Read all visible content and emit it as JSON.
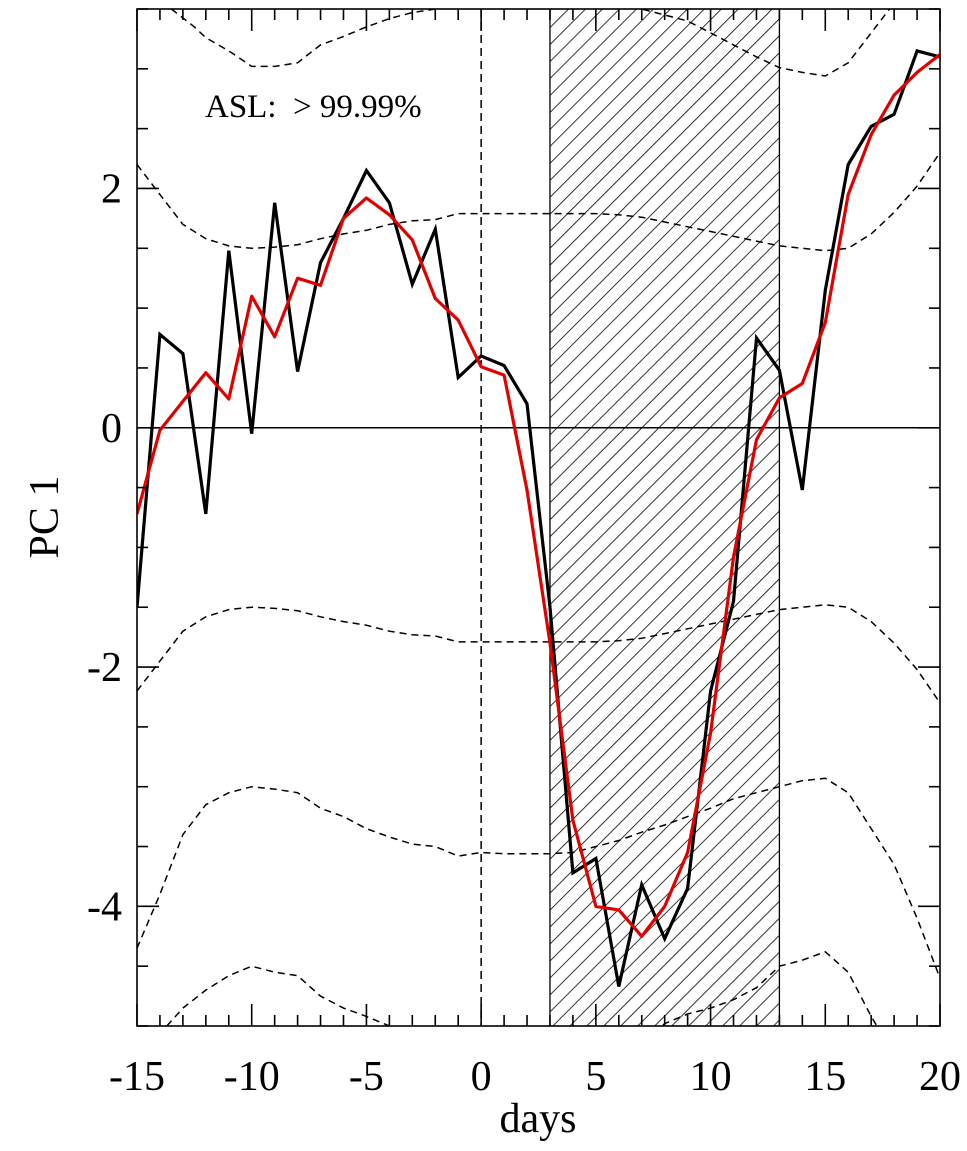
{
  "chart_data": {
    "type": "line",
    "xlabel": "days",
    "ylabel": "PC 1",
    "xlim": [
      -15,
      20
    ],
    "ylim": [
      -5,
      3.5
    ],
    "x_ticks": [
      -15,
      -10,
      -5,
      0,
      5,
      10,
      15,
      20
    ],
    "y_ticks": [
      -4,
      -2,
      0,
      2
    ],
    "x_minor_step": 1,
    "y_minor_step": 0.5,
    "annotation": "ASL:  > 99.99%",
    "shaded_region": [
      3,
      13
    ],
    "zero_line": 0,
    "vertical_marker": 0,
    "colors": {
      "raw": "#000000",
      "smoothed": "#e00000",
      "bands": "#000000"
    },
    "series": [
      {
        "x": [
          -15,
          -14,
          -13,
          -12,
          -11,
          -10,
          -9,
          -8,
          -7,
          -6,
          -5,
          -4,
          -3,
          -2,
          -1,
          0,
          1,
          2,
          3,
          4,
          5,
          6,
          7,
          8,
          9,
          10,
          11,
          12,
          13,
          14,
          15,
          16,
          17,
          18,
          19,
          20
        ],
        "y": [
          -1.5,
          0.78,
          0.62,
          -0.72,
          1.48,
          -0.05,
          1.88,
          0.47,
          1.38,
          1.75,
          2.15,
          1.88,
          1.2,
          1.66,
          0.42,
          0.6,
          0.52,
          0.2,
          -1.5,
          -3.72,
          -3.6,
          -4.67,
          -3.82,
          -4.27,
          -3.85,
          -2.2,
          -1.45,
          0.75,
          0.48,
          -0.52,
          1.15,
          2.2,
          2.52,
          2.62,
          3.15,
          3.1
        ]
      },
      {
        "x": [
          -15,
          -14,
          -13,
          -12,
          -11,
          -10,
          -9,
          -8,
          -7,
          -6,
          -5,
          -4,
          -3,
          -2,
          -1,
          0,
          1,
          2,
          3,
          4,
          5,
          6,
          7,
          8,
          9,
          10,
          11,
          12,
          13,
          14,
          15,
          16,
          17,
          18,
          19,
          20
        ],
        "y": [
          -0.72,
          -0.02,
          0.22,
          0.46,
          0.24,
          1.1,
          0.76,
          1.25,
          1.19,
          1.75,
          1.92,
          1.78,
          1.57,
          1.08,
          0.9,
          0.51,
          0.44,
          -0.52,
          -1.8,
          -3.28,
          -4.0,
          -4.03,
          -4.25,
          -4.0,
          -3.55,
          -2.55,
          -1.08,
          -0.1,
          0.25,
          0.37,
          0.88,
          1.95,
          2.45,
          2.78,
          2.97,
          3.12
        ]
      }
    ],
    "bands": [
      {
        "x": [
          -15,
          -14,
          -13,
          -12,
          -11,
          -10,
          -9,
          -8,
          -7,
          -6,
          -5,
          -4,
          -3,
          -2,
          -1,
          0,
          1,
          2,
          3,
          4,
          5,
          6,
          7,
          8,
          9,
          10,
          11,
          12,
          13,
          14,
          15,
          16,
          17,
          18,
          19,
          20
        ],
        "y": [
          2.2,
          1.95,
          1.7,
          1.58,
          1.52,
          1.5,
          1.51,
          1.53,
          1.58,
          1.62,
          1.65,
          1.7,
          1.73,
          1.74,
          1.79,
          1.79,
          1.79,
          1.79,
          1.79,
          1.79,
          1.79,
          1.78,
          1.76,
          1.72,
          1.68,
          1.64,
          1.6,
          1.56,
          1.52,
          1.5,
          1.48,
          1.5,
          1.62,
          1.8,
          2.02,
          2.3
        ]
      },
      {
        "x": [
          -15,
          -14,
          -13,
          -12,
          -11,
          -10,
          -9,
          -8,
          -7,
          -6,
          -5,
          -4,
          -3,
          -2,
          -1,
          0,
          1,
          2,
          3,
          4,
          5,
          6,
          7,
          8,
          9,
          10,
          11,
          12,
          13,
          14,
          15,
          16,
          17,
          18,
          19,
          20
        ],
        "y": [
          -2.2,
          -1.95,
          -1.7,
          -1.58,
          -1.52,
          -1.5,
          -1.51,
          -1.53,
          -1.58,
          -1.62,
          -1.65,
          -1.7,
          -1.73,
          -1.74,
          -1.79,
          -1.79,
          -1.79,
          -1.79,
          -1.79,
          -1.79,
          -1.79,
          -1.78,
          -1.76,
          -1.72,
          -1.68,
          -1.64,
          -1.6,
          -1.56,
          -1.52,
          -1.5,
          -1.48,
          -1.5,
          -1.62,
          -1.8,
          -2.02,
          -2.3
        ]
      },
      {
        "x": [
          -13.5,
          -12.5,
          -12,
          -11,
          -10,
          -9,
          -8,
          -7,
          -6,
          -5,
          -4,
          -3,
          -2,
          -1,
          0
        ],
        "y": [
          3.5,
          3.35,
          3.26,
          3.15,
          3.02,
          3.02,
          3.05,
          3.2,
          3.27,
          3.35,
          3.42,
          3.47,
          3.5,
          3.52,
          3.55
        ]
      },
      {
        "x": [
          5,
          6,
          7,
          8,
          9,
          10,
          11,
          12,
          13,
          14,
          15,
          16,
          17,
          18,
          19,
          20
        ],
        "y": [
          3.57,
          3.55,
          3.5,
          3.45,
          3.4,
          3.3,
          3.2,
          3.1,
          3.01,
          2.97,
          2.94,
          3.05,
          3.3,
          3.55,
          3.8,
          4.1
        ]
      },
      {
        "x": [
          -15,
          -14,
          -13,
          -12,
          -11,
          -10,
          -9,
          -8,
          -7,
          -6,
          -5,
          -4,
          -3,
          -2,
          -1,
          0,
          1,
          2,
          3,
          4,
          5,
          6,
          7,
          8,
          9,
          10,
          11,
          12,
          13,
          14,
          15,
          16,
          17,
          18,
          19,
          20
        ],
        "y": [
          -4.35,
          -3.9,
          -3.4,
          -3.15,
          -3.05,
          -3.0,
          -3.02,
          -3.05,
          -3.18,
          -3.25,
          -3.35,
          -3.42,
          -3.48,
          -3.5,
          -3.58,
          -3.55,
          -3.56,
          -3.56,
          -3.56,
          -3.55,
          -3.5,
          -3.45,
          -3.38,
          -3.32,
          -3.25,
          -3.18,
          -3.1,
          -3.05,
          -3.0,
          -2.95,
          -2.93,
          -3.05,
          -3.35,
          -3.65,
          -4.1,
          -4.6
        ]
      },
      {
        "x": [
          -13.7,
          -13,
          -12,
          -11,
          -10,
          -9,
          -8,
          -7,
          -6,
          -5,
          -4,
          -3,
          -2.5
        ],
        "y": [
          -5.0,
          -4.85,
          -4.7,
          -4.58,
          -4.5,
          -4.55,
          -4.58,
          -4.75,
          -4.85,
          -4.92,
          -5.0,
          -5.08,
          -5.12
        ]
      },
      {
        "x": [
          7.5,
          8,
          9,
          10,
          11,
          12,
          13,
          14,
          15,
          16,
          17,
          17.5
        ],
        "y": [
          -5.05,
          -4.98,
          -4.9,
          -4.85,
          -4.78,
          -4.68,
          -4.5,
          -4.45,
          -4.38,
          -4.55,
          -4.92,
          -5.08
        ]
      }
    ]
  }
}
